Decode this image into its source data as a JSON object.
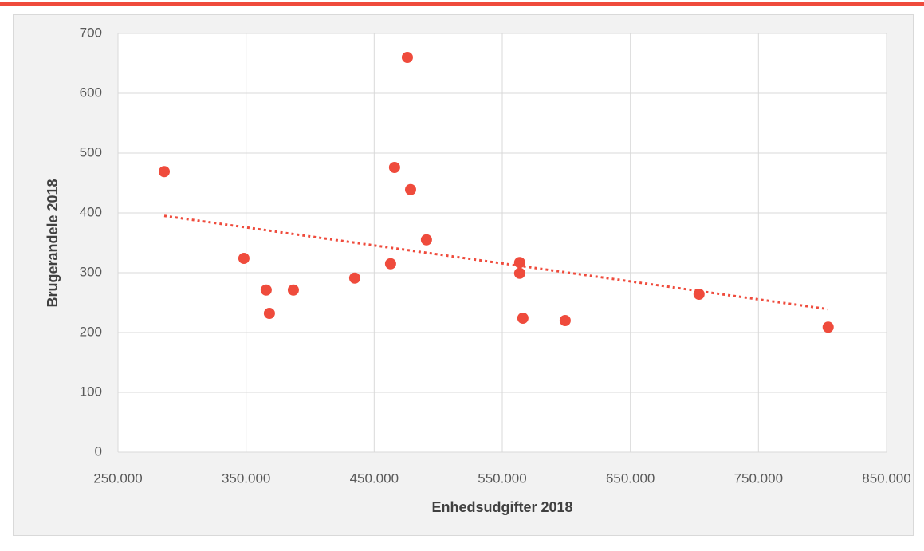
{
  "chart_data": {
    "type": "scatter",
    "x_label": "Enhedsudgifter 2018",
    "y_label": "Brugerandele 2018",
    "color": "#ef4b3c",
    "x": [
      286100,
      348300,
      365700,
      368200,
      386900,
      434800,
      462800,
      465900,
      475900,
      478400,
      490800,
      563600,
      563600,
      566100,
      599100,
      703600,
      804400
    ],
    "y": [
      469,
      324,
      271,
      232,
      271,
      291,
      315,
      476,
      660,
      439,
      355,
      317,
      299,
      224,
      220,
      264,
      209
    ],
    "trendline": {
      "x": [
        286100,
        804400
      ],
      "y": [
        395,
        239
      ]
    },
    "xlim": [
      250000,
      850000
    ],
    "xticks": [
      {
        "value": 250000,
        "label": "250.000"
      },
      {
        "value": 350000,
        "label": "350.000"
      },
      {
        "value": 450000,
        "label": "450.000"
      },
      {
        "value": 550000,
        "label": "550.000"
      },
      {
        "value": 650000,
        "label": "650.000"
      },
      {
        "value": 750000,
        "label": "750.000"
      },
      {
        "value": 850000,
        "label": "850.000"
      }
    ],
    "ylim": [
      0,
      700
    ],
    "yticks": [
      0,
      100,
      200,
      300,
      400,
      500,
      600,
      700
    ],
    "grid": true
  }
}
